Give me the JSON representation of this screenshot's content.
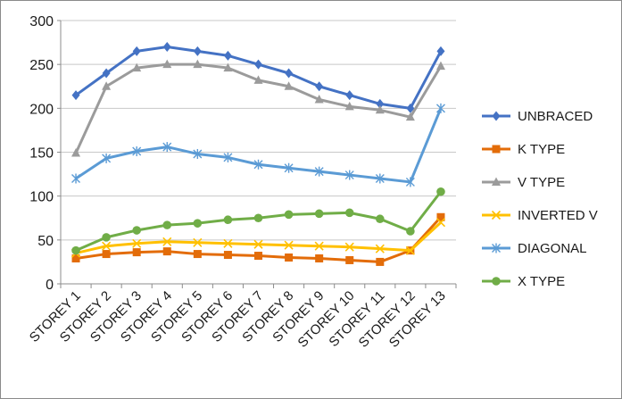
{
  "chart_data": {
    "type": "line",
    "categories": [
      "STOREY 1",
      "STOREY 2",
      "STOREY 3",
      "STOREY 4",
      "STOREY 5",
      "STOREY 6",
      "STOREY 7",
      "STOREY 8",
      "STOREY 9",
      "STOREY 10",
      "STOREY 11",
      "STOREY 12",
      "STOREY 13"
    ],
    "ylim": [
      0,
      300
    ],
    "yticks": [
      0,
      50,
      100,
      150,
      200,
      250,
      300
    ],
    "grid": true,
    "legend_position": "right",
    "series": [
      {
        "name": "UNBRACED",
        "color": "#4472C4",
        "marker": "diamond",
        "values": [
          215,
          240,
          265,
          270,
          265,
          260,
          250,
          240,
          225,
          215,
          205,
          200,
          265
        ]
      },
      {
        "name": "K TYPE",
        "color": "#E36C09",
        "marker": "square",
        "values": [
          29,
          34,
          36,
          37,
          34,
          33,
          32,
          30,
          29,
          27,
          25,
          38,
          76
        ]
      },
      {
        "name": "V TYPE",
        "color": "#9B9B9B",
        "marker": "triangle",
        "values": [
          149,
          225,
          246,
          250,
          250,
          246,
          232,
          225,
          210,
          202,
          198,
          190,
          248
        ]
      },
      {
        "name": "INVERTED V",
        "color": "#FFC000",
        "marker": "x",
        "values": [
          35,
          43,
          46,
          48,
          47,
          46,
          45,
          44,
          43,
          42,
          40,
          38,
          70
        ]
      },
      {
        "name": "DIAGONAL",
        "color": "#5B9BD5",
        "marker": "star",
        "values": [
          120,
          143,
          151,
          156,
          148,
          144,
          136,
          132,
          128,
          124,
          120,
          116,
          200
        ]
      },
      {
        "name": "X TYPE",
        "color": "#70AD47",
        "marker": "circle",
        "values": [
          38,
          53,
          61,
          67,
          69,
          73,
          75,
          79,
          80,
          81,
          74,
          60,
          105
        ]
      }
    ]
  }
}
